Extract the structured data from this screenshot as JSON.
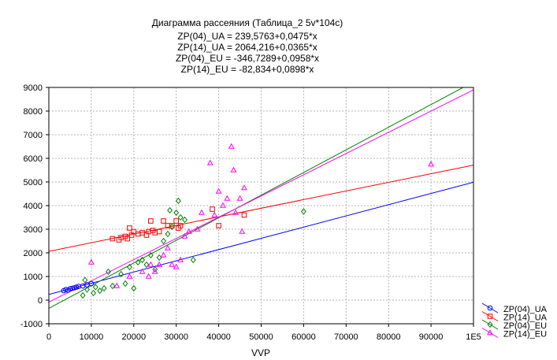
{
  "chart_data": {
    "type": "scatter",
    "title": "Диаграмма рассеяния (Таблица_2 5v*104c)",
    "equations": [
      "ZP(04)_UA = 239,5763+0,0475*x",
      "ZP(14)_UA = 2064,216+0,0365*x",
      "ZP(04)_EU = -346,7289+0,0958*x",
      "ZP(14)_EU = -82,834+0,0898*x"
    ],
    "xlabel": "VVP",
    "ylabel": "",
    "xlim": [
      0,
      100000
    ],
    "ylim": [
      -1000,
      9000
    ],
    "xticks": [
      {
        "value": 0,
        "label": "0"
      },
      {
        "value": 10000,
        "label": "10000"
      },
      {
        "value": 20000,
        "label": "20000"
      },
      {
        "value": 30000,
        "label": "30000"
      },
      {
        "value": 40000,
        "label": "40000"
      },
      {
        "value": 50000,
        "label": "50000"
      },
      {
        "value": 60000,
        "label": "60000"
      },
      {
        "value": 70000,
        "label": "70000"
      },
      {
        "value": 80000,
        "label": "80000"
      },
      {
        "value": 90000,
        "label": "90000"
      },
      {
        "value": 100000,
        "label": "1E5"
      }
    ],
    "yticks": [
      {
        "value": -1000,
        "label": "-1000"
      },
      {
        "value": 0,
        "label": "0"
      },
      {
        "value": 1000,
        "label": "1000"
      },
      {
        "value": 2000,
        "label": "2000"
      },
      {
        "value": 3000,
        "label": "3000"
      },
      {
        "value": 4000,
        "label": "4000"
      },
      {
        "value": 5000,
        "label": "5000"
      },
      {
        "value": 6000,
        "label": "6000"
      },
      {
        "value": 7000,
        "label": "7000"
      },
      {
        "value": 8000,
        "label": "8000"
      },
      {
        "value": 9000,
        "label": "9000"
      }
    ],
    "grid": true,
    "legend_position": "bottom-right",
    "series": [
      {
        "name": "ZP(04)_UA",
        "marker": "circle",
        "color": "#0000ff",
        "fit": {
          "intercept": 239.5763,
          "slope": 0.0475
        },
        "points": [
          [
            3500,
            400
          ],
          [
            4000,
            450
          ],
          [
            4500,
            420
          ],
          [
            5000,
            480
          ],
          [
            5500,
            500
          ],
          [
            6000,
            520
          ],
          [
            6500,
            550
          ],
          [
            7000,
            580
          ],
          [
            8000,
            600
          ],
          [
            9000,
            650
          ],
          [
            10000,
            700
          ]
        ]
      },
      {
        "name": "ZP(14)_UA",
        "marker": "square",
        "color": "#ff0000",
        "fit": {
          "intercept": 2064.216,
          "slope": 0.0365
        },
        "points": [
          [
            15000,
            2600
          ],
          [
            16500,
            2550
          ],
          [
            17000,
            2650
          ],
          [
            18000,
            2700
          ],
          [
            18500,
            2600
          ],
          [
            19000,
            3050
          ],
          [
            19500,
            2750
          ],
          [
            20000,
            2900
          ],
          [
            21000,
            2800
          ],
          [
            22000,
            2850
          ],
          [
            23000,
            2750
          ],
          [
            23500,
            2900
          ],
          [
            24000,
            3350
          ],
          [
            24500,
            2950
          ],
          [
            25000,
            2850
          ],
          [
            26000,
            2900
          ],
          [
            27000,
            3350
          ],
          [
            28000,
            3150
          ],
          [
            29000,
            3150
          ],
          [
            30000,
            3350
          ],
          [
            30500,
            3050
          ],
          [
            31000,
            3150
          ],
          [
            38500,
            3850
          ],
          [
            40000,
            3150
          ],
          [
            46000,
            3600
          ]
        ]
      },
      {
        "name": "ZP(04)_EU",
        "marker": "diamond",
        "color": "#008000",
        "fit": {
          "intercept": -346.7289,
          "slope": 0.0958
        },
        "points": [
          [
            8000,
            200
          ],
          [
            8500,
            850
          ],
          [
            9000,
            450
          ],
          [
            10500,
            300
          ],
          [
            11000,
            550
          ],
          [
            12000,
            400
          ],
          [
            13000,
            500
          ],
          [
            14000,
            1200
          ],
          [
            15000,
            600
          ],
          [
            17000,
            1100
          ],
          [
            18000,
            700
          ],
          [
            19000,
            1400
          ],
          [
            20000,
            500
          ],
          [
            21000,
            1600
          ],
          [
            22000,
            1700
          ],
          [
            23000,
            1500
          ],
          [
            24000,
            1900
          ],
          [
            25000,
            1300
          ],
          [
            26000,
            1800
          ],
          [
            27000,
            2500
          ],
          [
            28000,
            2800
          ],
          [
            28500,
            3800
          ],
          [
            29000,
            3100
          ],
          [
            30000,
            3700
          ],
          [
            30500,
            4200
          ],
          [
            31000,
            3500
          ],
          [
            32000,
            3400
          ],
          [
            34000,
            1700
          ],
          [
            60000,
            3750
          ]
        ]
      },
      {
        "name": "ZP(14)_EU",
        "marker": "triangle",
        "color": "#ff00ff",
        "fit": {
          "intercept": -82.834,
          "slope": 0.0898
        },
        "points": [
          [
            10000,
            1600
          ],
          [
            16000,
            600
          ],
          [
            19000,
            1000
          ],
          [
            22000,
            1200
          ],
          [
            23500,
            1000
          ],
          [
            24000,
            1500
          ],
          [
            25000,
            1200
          ],
          [
            26000,
            1500
          ],
          [
            27000,
            1900
          ],
          [
            28000,
            2200
          ],
          [
            29000,
            1500
          ],
          [
            30000,
            1400
          ],
          [
            31000,
            1700
          ],
          [
            32000,
            2700
          ],
          [
            33000,
            2900
          ],
          [
            35000,
            3000
          ],
          [
            36000,
            3700
          ],
          [
            38000,
            5800
          ],
          [
            39000,
            3600
          ],
          [
            40000,
            4600
          ],
          [
            41000,
            4000
          ],
          [
            42000,
            4300
          ],
          [
            43000,
            6500
          ],
          [
            43500,
            5500
          ],
          [
            44000,
            3700
          ],
          [
            45000,
            4300
          ],
          [
            45500,
            2900
          ],
          [
            46000,
            4750
          ],
          [
            90000,
            5750
          ]
        ]
      }
    ]
  }
}
